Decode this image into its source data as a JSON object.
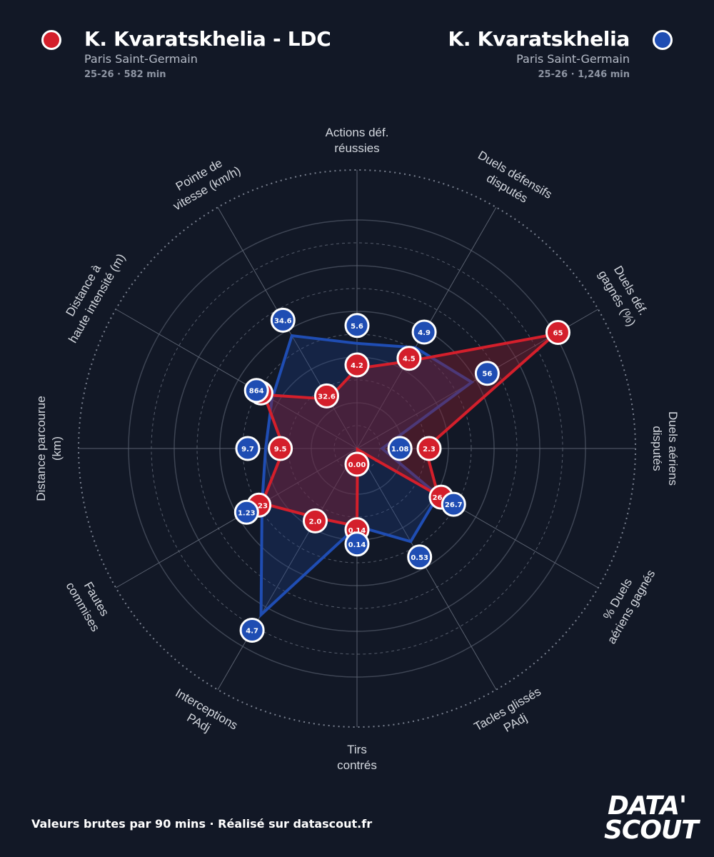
{
  "header": {
    "left": {
      "name": "K. Kvaratskhelia - LDC",
      "team": "Paris Saint-Germain",
      "meta": "25-26 · 582 min",
      "color": "#d41f2b"
    },
    "right": {
      "name": "K. Kvaratskhelia",
      "team": "Paris Saint-Germain",
      "meta": "25-26 · 1,246 min",
      "color": "#1f4db3"
    }
  },
  "footer": {
    "text": "Valeurs brutes par 90 mins · Réalisé sur datascout.fr"
  },
  "logo": {
    "line1": "DATA'",
    "line2": "SCOUT"
  },
  "chart_data": {
    "type": "radar",
    "axes": [
      {
        "label": [
          "Actions déf.",
          "réussies"
        ]
      },
      {
        "label": [
          "Duels défensifs",
          "disputés"
        ]
      },
      {
        "label": [
          "Duels déf.",
          "gagnés (%)"
        ]
      },
      {
        "label": [
          "Duels aériens",
          "disputés"
        ]
      },
      {
        "label": [
          "% Duels",
          "aériens gagnés"
        ]
      },
      {
        "label": [
          "Tacles glissés",
          "PAdj"
        ]
      },
      {
        "label": [
          "Tirs",
          "contrés"
        ]
      },
      {
        "label": [
          "Interceptions",
          "PAdj"
        ]
      },
      {
        "label": [
          "Fautes",
          "commises"
        ]
      },
      {
        "label": [
          "Distance parcourue",
          "(km)"
        ]
      },
      {
        "label": [
          "Distance à",
          "haute intensité (m)"
        ]
      },
      {
        "label": [
          "Pointe de",
          "vitesse (km/h)"
        ]
      }
    ],
    "series": [
      {
        "name": "K. Kvaratskhelia - LDC",
        "color": "#d41f2b",
        "values": [
          "4.2",
          "4.5",
          "65",
          "2.3",
          "26.7",
          "0.00",
          "0.14",
          "2.0",
          "1.23",
          "9.5",
          "931",
          "32.6"
        ],
        "normalized": [
          0.35,
          0.44,
          1.0,
          0.3,
          0.41,
          0.0,
          0.34,
          0.35,
          0.48,
          0.32,
          0.47,
          0.25
        ]
      },
      {
        "name": "K. Kvaratskhelia",
        "color": "#1f4db3",
        "values": [
          "5.6",
          "4.9",
          "56",
          "1.08",
          "26.7",
          "0.53",
          "0.14",
          "4.7",
          "1.23",
          "9.7",
          "864",
          "34.6"
        ],
        "normalized": [
          0.46,
          0.51,
          0.58,
          0.11,
          0.41,
          0.47,
          0.34,
          0.84,
          0.48,
          0.4,
          0.43,
          0.57
        ]
      }
    ],
    "grid_rings": 5
  }
}
